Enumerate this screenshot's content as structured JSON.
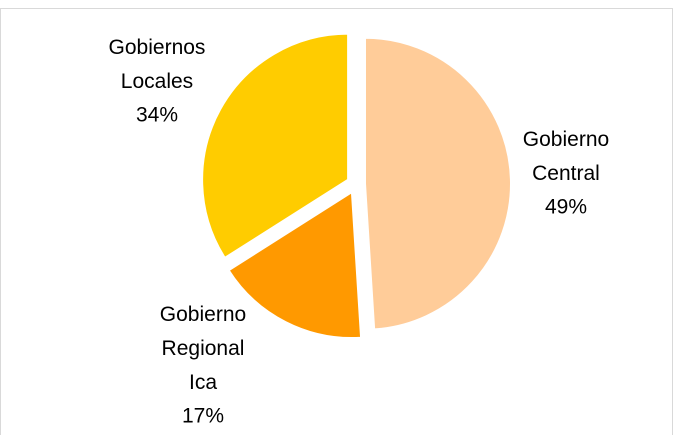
{
  "chart_data": {
    "type": "pie",
    "categories": [
      "Gobierno Central",
      "Gobierno Regional Ica",
      "Gobiernos Locales"
    ],
    "values": [
      49,
      17,
      34
    ],
    "value_labels": [
      "49%",
      "17%",
      "34%"
    ],
    "colors": [
      "#FFCC99",
      "#FF9900",
      "#FFCC00"
    ]
  }
}
